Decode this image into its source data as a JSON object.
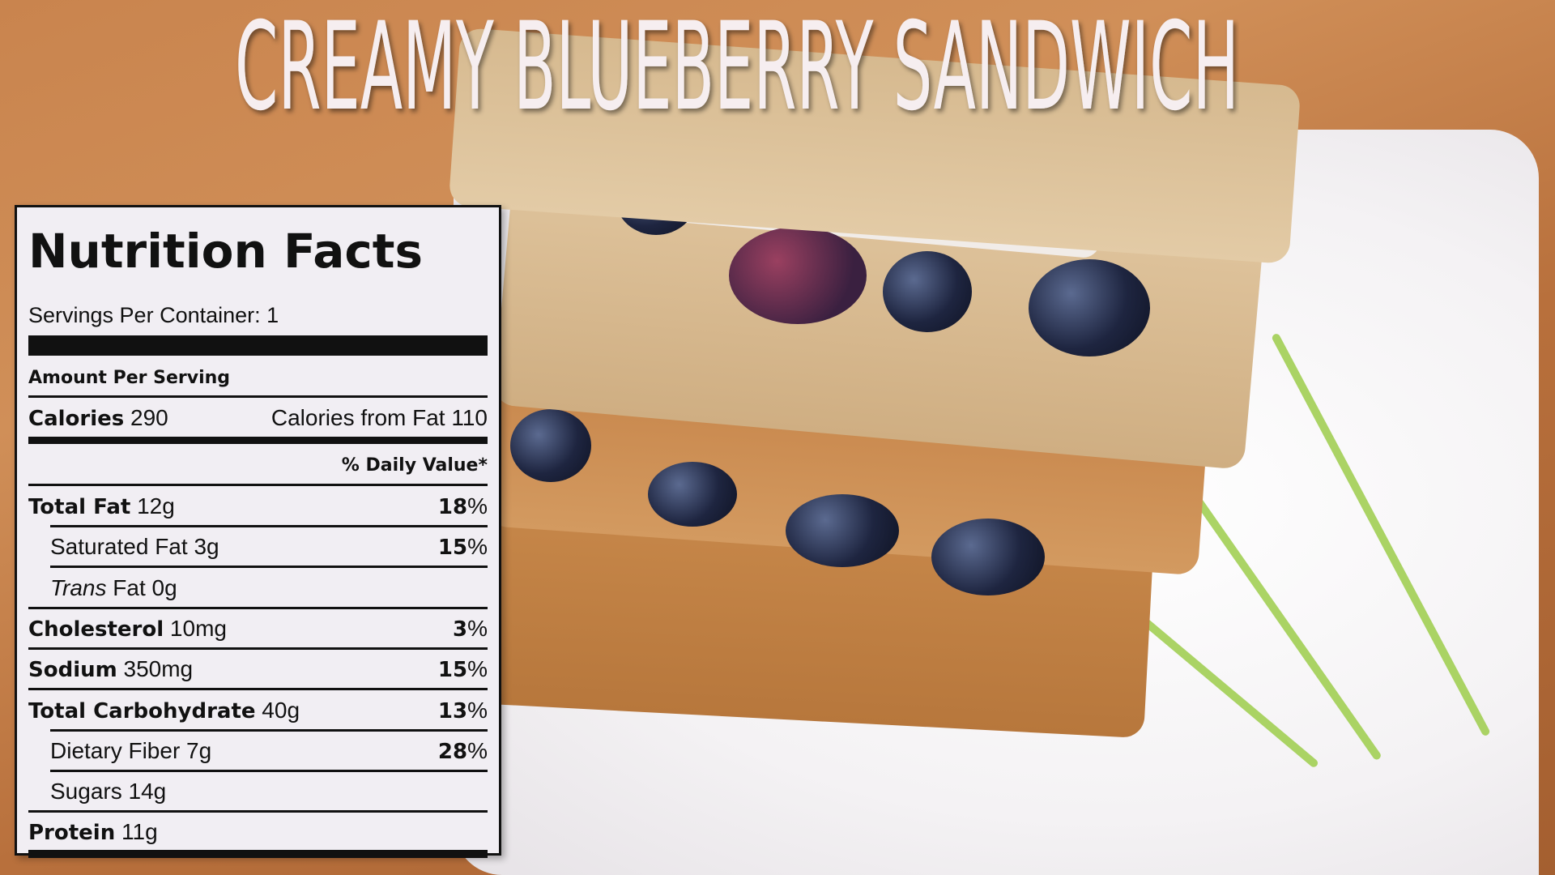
{
  "title": "CREAMY BLUEBERRY SANDWICH",
  "nutrition": {
    "heading": "Nutrition Facts",
    "servings": "Servings Per Container: 1",
    "amount_per_serving": "Amount Per Serving",
    "calories_label": "Calories",
    "calories_value": "290",
    "calories_from_fat": "Calories from Fat 110",
    "daily_value_header": "% Daily Value*",
    "rows": [
      {
        "label": "Total Fat",
        "amount": "12g",
        "pct": "18",
        "bold": true
      },
      {
        "label": "Saturated Fat",
        "amount": "3g",
        "pct": "15",
        "bold": false
      },
      {
        "label": "Trans",
        "amount": "Fat 0g",
        "pct": "",
        "bold": false
      },
      {
        "label": "Cholesterol",
        "amount": "10mg",
        "pct": "3",
        "bold": true
      },
      {
        "label": "Sodium",
        "amount": "350mg",
        "pct": "15",
        "bold": true
      },
      {
        "label": "Total Carbohydrate",
        "amount": "40g",
        "pct": "13",
        "bold": true
      },
      {
        "label": "Dietary Fiber",
        "amount": "7g",
        "pct": "28",
        "bold": false
      },
      {
        "label": "Sugars",
        "amount": "14g",
        "pct": "",
        "bold": false
      },
      {
        "label": "Protein",
        "amount": "11g",
        "pct": "",
        "bold": true
      }
    ],
    "percent_sign": "%"
  }
}
